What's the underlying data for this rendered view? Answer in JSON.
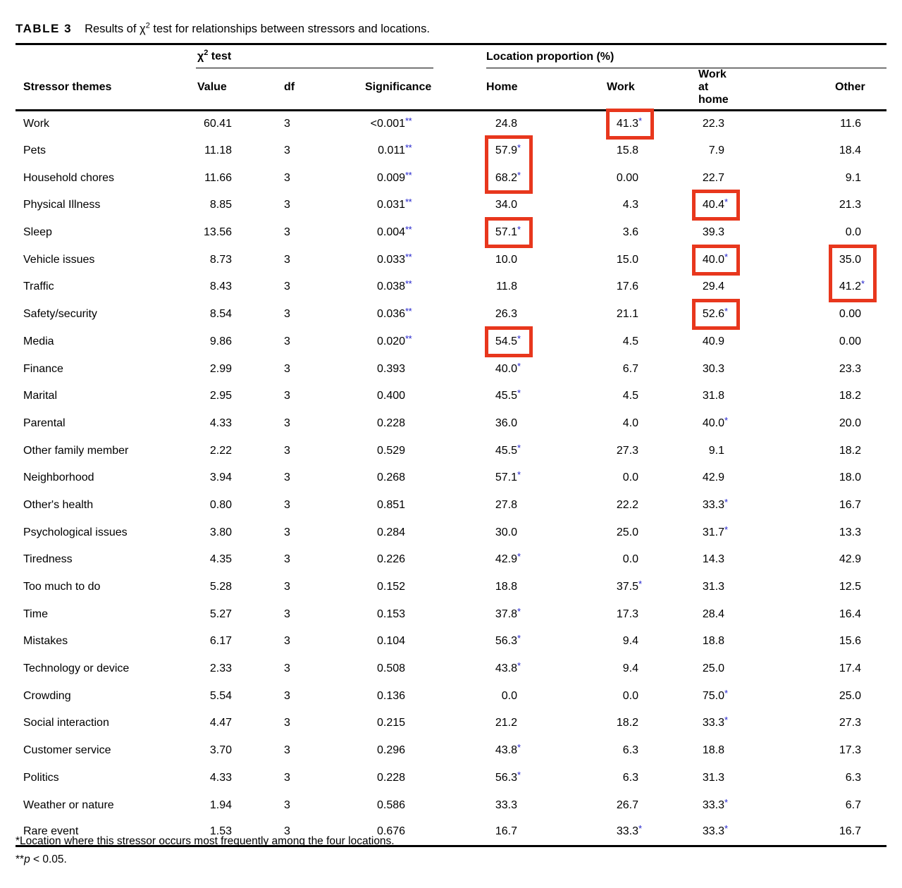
{
  "colors": {
    "highlight_red": "#e8371d",
    "star_blue": "#2222cc",
    "rule_black": "#000000"
  },
  "caption": {
    "label": "TABLE 3",
    "title_chi_prefix": "Results of χ",
    "title_sup": "2",
    "title_suffix": " test for relationships between stressors and locations."
  },
  "table": {
    "group_headers": {
      "chi_prefix": "χ",
      "chi_sup": "2",
      "chi_suffix": " test",
      "location": "Location proportion (%)"
    },
    "columns": {
      "stressor": "Stressor themes",
      "value": "Value",
      "df": "df",
      "significance": "Significance",
      "home": "Home",
      "work": "Work",
      "work_at_home": "Work at home",
      "other": "Other"
    },
    "rows": [
      {
        "stressor": "Work",
        "value": "60.41",
        "df": "3",
        "sig": "<0.001",
        "sig_stars": "**",
        "home": "24.8",
        "work": "41.3",
        "work_star": true,
        "wah": "22.3",
        "other": "11.6"
      },
      {
        "stressor": "Pets",
        "value": "11.18",
        "df": "3",
        "sig": "0.011",
        "sig_stars": "**",
        "home": "57.9",
        "home_star": true,
        "work": "15.8",
        "wah": "7.9",
        "other": "18.4"
      },
      {
        "stressor": "Household chores",
        "value": "11.66",
        "df": "3",
        "sig": "0.009",
        "sig_stars": "**",
        "home": "68.2",
        "home_star": true,
        "work": "0.00",
        "wah": "22.7",
        "other": "9.1"
      },
      {
        "stressor": "Physical Illness",
        "value": "8.85",
        "df": "3",
        "sig": "0.031",
        "sig_stars": "**",
        "home": "34.0",
        "work": "4.3",
        "wah": "40.4",
        "wah_star": true,
        "other": "21.3"
      },
      {
        "stressor": "Sleep",
        "value": "13.56",
        "df": "3",
        "sig": "0.004",
        "sig_stars": "**",
        "home": "57.1",
        "home_star": true,
        "work": "3.6",
        "wah": "39.3",
        "other": "0.0"
      },
      {
        "stressor": "Vehicle issues",
        "value": "8.73",
        "df": "3",
        "sig": "0.033",
        "sig_stars": "**",
        "home": "10.0",
        "work": "15.0",
        "wah": "40.0",
        "wah_star": true,
        "other": "35.0"
      },
      {
        "stressor": "Traffic",
        "value": "8.43",
        "df": "3",
        "sig": "0.038",
        "sig_stars": "**",
        "home": "11.8",
        "work": "17.6",
        "wah": "29.4",
        "other": "41.2",
        "other_star": true
      },
      {
        "stressor": "Safety/security",
        "value": "8.54",
        "df": "3",
        "sig": "0.036",
        "sig_stars": "**",
        "home": "26.3",
        "work": "21.1",
        "wah": "52.6",
        "wah_star": true,
        "other": "0.00"
      },
      {
        "stressor": "Media",
        "value": "9.86",
        "df": "3",
        "sig": "0.020",
        "sig_stars": "**",
        "home": "54.5",
        "home_star": true,
        "work": "4.5",
        "wah": "40.9",
        "other": "0.00"
      },
      {
        "stressor": "Finance",
        "value": "2.99",
        "df": "3",
        "sig": "0.393",
        "home": "40.0",
        "home_star": true,
        "work": "6.7",
        "wah": "30.3",
        "other": "23.3"
      },
      {
        "stressor": "Marital",
        "value": "2.95",
        "df": "3",
        "sig": "0.400",
        "home": "45.5",
        "home_star": true,
        "work": "4.5",
        "wah": "31.8",
        "other": "18.2"
      },
      {
        "stressor": "Parental",
        "value": "4.33",
        "df": "3",
        "sig": "0.228",
        "home": "36.0",
        "work": "4.0",
        "wah": "40.0",
        "wah_star": true,
        "other": "20.0"
      },
      {
        "stressor": "Other family member",
        "value": "2.22",
        "df": "3",
        "sig": "0.529",
        "home": "45.5",
        "home_star": true,
        "work": "27.3",
        "wah": "9.1",
        "other": "18.2"
      },
      {
        "stressor": "Neighborhood",
        "value": "3.94",
        "df": "3",
        "sig": "0.268",
        "home": "57.1",
        "home_star": true,
        "work": "0.0",
        "wah": "42.9",
        "other": "18.0"
      },
      {
        "stressor": "Other's health",
        "value": "0.80",
        "df": "3",
        "sig": "0.851",
        "home": "27.8",
        "work": "22.2",
        "wah": "33.3",
        "wah_star": true,
        "other": "16.7"
      },
      {
        "stressor": "Psychological issues",
        "value": "3.80",
        "df": "3",
        "sig": "0.284",
        "home": "30.0",
        "work": "25.0",
        "wah": "31.7",
        "wah_star": true,
        "other": "13.3"
      },
      {
        "stressor": "Tiredness",
        "value": "4.35",
        "df": "3",
        "sig": "0.226",
        "home": "42.9",
        "home_star": true,
        "work": "0.0",
        "wah": "14.3",
        "other": "42.9"
      },
      {
        "stressor": "Too much to do",
        "value": "5.28",
        "df": "3",
        "sig": "0.152",
        "home": "18.8",
        "work": "37.5",
        "work_star": true,
        "wah": "31.3",
        "other": "12.5"
      },
      {
        "stressor": "Time",
        "value": "5.27",
        "df": "3",
        "sig": "0.153",
        "home": "37.8",
        "home_star": true,
        "work": "17.3",
        "wah": "28.4",
        "other": "16.4"
      },
      {
        "stressor": "Mistakes",
        "value": "6.17",
        "df": "3",
        "sig": "0.104",
        "home": "56.3",
        "home_star": true,
        "work": "9.4",
        "wah": "18.8",
        "other": "15.6"
      },
      {
        "stressor": "Technology or device",
        "value": "2.33",
        "df": "3",
        "sig": "0.508",
        "home": "43.8",
        "home_star": true,
        "work": "9.4",
        "wah": "25.0",
        "other": "17.4"
      },
      {
        "stressor": "Crowding",
        "value": "5.54",
        "df": "3",
        "sig": "0.136",
        "home": "0.0",
        "work": "0.0",
        "wah": "75.0",
        "wah_star": true,
        "other": "25.0"
      },
      {
        "stressor": "Social interaction",
        "value": "4.47",
        "df": "3",
        "sig": "0.215",
        "home": "21.2",
        "work": "18.2",
        "wah": "33.3",
        "wah_star": true,
        "other": "27.3"
      },
      {
        "stressor": "Customer service",
        "value": "3.70",
        "df": "3",
        "sig": "0.296",
        "home": "43.8",
        "home_star": true,
        "work": "6.3",
        "wah": "18.8",
        "other": "17.3"
      },
      {
        "stressor": "Politics",
        "value": "4.33",
        "df": "3",
        "sig": "0.228",
        "home": "56.3",
        "home_star": true,
        "work": "6.3",
        "wah": "31.3",
        "other": "6.3"
      },
      {
        "stressor": "Weather or nature",
        "value": "1.94",
        "df": "3",
        "sig": "0.586",
        "home": "33.3",
        "work": "26.7",
        "wah": "33.3",
        "wah_star": true,
        "other": "6.7"
      },
      {
        "stressor": "Rare event",
        "value": "1.53",
        "df": "3",
        "sig": "0.676",
        "home": "16.7",
        "work": "33.3",
        "work_star": true,
        "wah": "33.3",
        "wah_star": true,
        "other": "16.7"
      }
    ],
    "highlights": [
      {
        "row": 0,
        "col": "work",
        "span": 1
      },
      {
        "row": 1,
        "col": "home",
        "span": 2
      },
      {
        "row": 3,
        "col": "wah",
        "span": 1
      },
      {
        "row": 4,
        "col": "home",
        "span": 1
      },
      {
        "row": 5,
        "col": "wah",
        "span": 1
      },
      {
        "row": 5,
        "col": "other",
        "span": 2
      },
      {
        "row": 7,
        "col": "wah",
        "span": 1
      },
      {
        "row": 8,
        "col": "home",
        "span": 1
      }
    ]
  },
  "footnotes": {
    "f1_star": "*",
    "f1_text": "Location where this stressor occurs most frequently among the four locations.",
    "f2_stars": "**",
    "f2_p": "p",
    "f2_rest": " < 0.05."
  }
}
